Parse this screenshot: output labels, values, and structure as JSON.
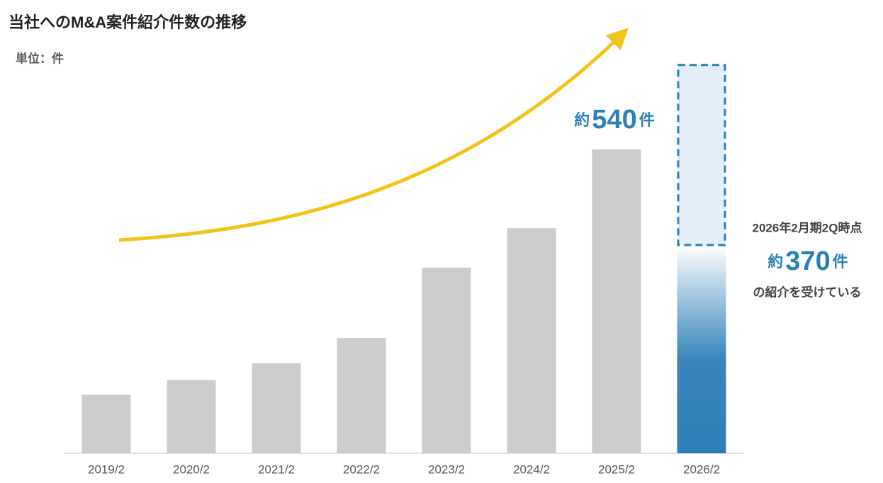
{
  "chart_data": {
    "type": "bar",
    "title": "当社へのM&A案件紹介件数の推移",
    "unit_label": "単位：件",
    "categories": [
      "2019/2",
      "2020/2",
      "2021/2",
      "2022/2",
      "2023/2",
      "2024/2",
      "2025/2",
      "2026/2"
    ],
    "series": [
      {
        "color": "#cccccc",
        "values": [
          104,
          130,
          160,
          205,
          330,
          400,
          540,
          370
        ],
        "value_labels": [
          null,
          null,
          null,
          null,
          null,
          null,
          "約540件",
          "約370件"
        ]
      },
      {
        "color": "#e3eef8",
        "values": [
          null,
          null,
          null,
          null,
          null,
          null,
          null,
          322
        ]
      }
    ],
    "highlight_color": "#2e7fb8",
    "annotations": [
      "2026年2月期2Q時点",
      "の紹介を受けている"
    ]
  }
}
